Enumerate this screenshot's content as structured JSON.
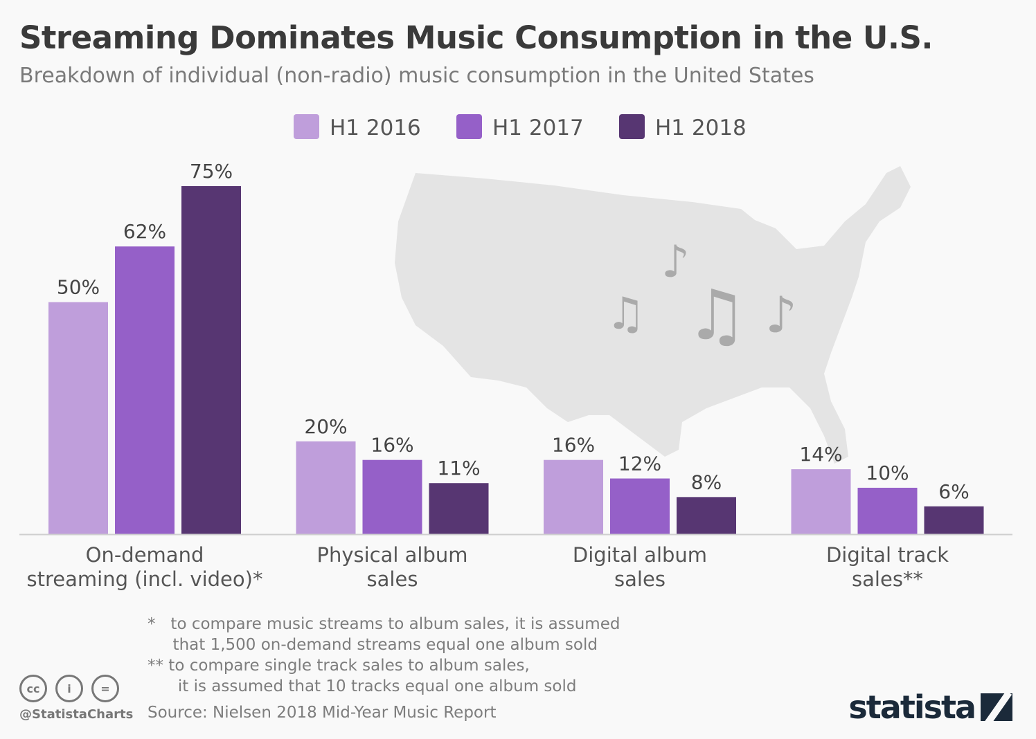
{
  "title": "Streaming Dominates Music Consumption in the U.S.",
  "subtitle": "Breakdown of individual (non-radio) music consumption in the United States",
  "chart_data": {
    "type": "bar",
    "categories": [
      [
        "On-demand",
        "streaming (incl. video)*"
      ],
      [
        "Physical album",
        "sales"
      ],
      [
        "Digital album",
        "sales"
      ],
      [
        "Digital track",
        "sales**"
      ]
    ],
    "series": [
      {
        "name": "H1 2016",
        "color": "#bf9edb",
        "values": [
          50,
          20,
          16,
          14
        ]
      },
      {
        "name": "H1 2017",
        "color": "#9560c8",
        "values": [
          62,
          16,
          12,
          10
        ]
      },
      {
        "name": "H1 2018",
        "color": "#573672",
        "values": [
          75,
          11,
          8,
          6
        ]
      }
    ],
    "value_suffix": "%",
    "ylim": [
      0,
      80
    ],
    "grid": false,
    "legend_position": "top-center"
  },
  "footnotes": [
    "*   to compare music streams to album sales, it is assumed",
    "     that 1,500 on-demand streams equal one album sold",
    "** to compare single track sales to album sales,",
    "      it is assumed that 10 tracks equal one album sold"
  ],
  "source": "Source: Nielsen 2018 Mid-Year Music Report",
  "handle": "@StatistaCharts",
  "license_icons": [
    "cc-icon",
    "attribution-icon",
    "no-derivatives-icon"
  ],
  "license_glyphs": [
    "cc",
    "i",
    "="
  ],
  "logo_text": "statista"
}
